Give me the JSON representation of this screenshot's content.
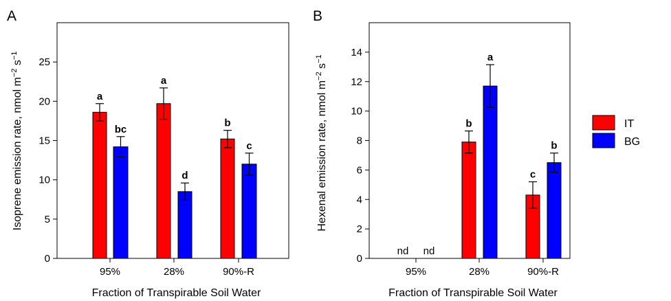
{
  "colors": {
    "IT": "#ff0000",
    "BG": "#0000ff",
    "axis": "#000000"
  },
  "legend": {
    "placement": "right",
    "entries": [
      "IT",
      "BG"
    ]
  },
  "chart_data": [
    {
      "type": "bar",
      "panel": "A",
      "xlabel": "Fraction of Transpirable Soil Water",
      "ylabel_main": "Isoprene emission rate, nmol m",
      "ylabel_exp1": "−2",
      "ylabel_mid": " s",
      "ylabel_exp2": "−1",
      "ylim": [
        0,
        30
      ],
      "yticks": [
        0,
        5,
        10,
        15,
        20,
        25
      ],
      "categories": [
        "95%",
        "28%",
        "90%-R"
      ],
      "series": [
        {
          "name": "IT",
          "values": [
            18.6,
            19.7,
            15.2
          ],
          "errors": [
            1.1,
            2.0,
            1.1
          ],
          "letters": [
            "a",
            "a",
            "b"
          ]
        },
        {
          "name": "BG",
          "values": [
            14.2,
            8.5,
            12.0
          ],
          "errors": [
            1.3,
            1.1,
            1.4
          ],
          "letters": [
            "bc",
            "d",
            "c"
          ]
        }
      ]
    },
    {
      "type": "bar",
      "panel": "B",
      "xlabel": "Fraction of Transpirable Soil Water",
      "ylabel_main": "Hexenal emission rate, nmol m",
      "ylabel_exp1": "−2",
      "ylabel_mid": " s",
      "ylabel_exp2": "−1",
      "ylim": [
        0,
        16
      ],
      "yticks": [
        0,
        2,
        4,
        6,
        8,
        10,
        12,
        14
      ],
      "categories": [
        "95%",
        "28%",
        "90%-R"
      ],
      "series": [
        {
          "name": "IT",
          "values": [
            null,
            7.9,
            4.3
          ],
          "errors": [
            null,
            0.75,
            0.9
          ],
          "letters": [
            "nd",
            "b",
            "c"
          ]
        },
        {
          "name": "BG",
          "values": [
            null,
            11.7,
            6.5
          ],
          "errors": [
            null,
            1.45,
            0.65
          ],
          "letters": [
            "nd",
            "a",
            "b"
          ]
        }
      ]
    }
  ]
}
